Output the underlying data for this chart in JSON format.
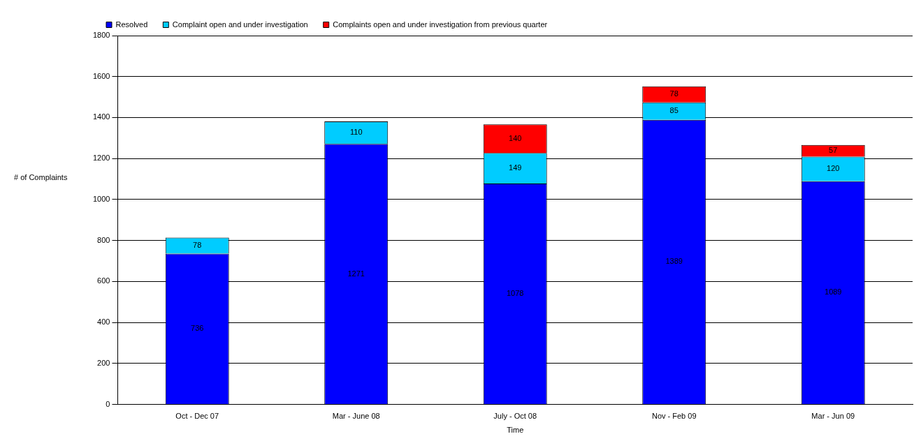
{
  "chart_data": {
    "type": "bar",
    "stacked": true,
    "xlabel": "Time",
    "ylabel": "# of Complaints",
    "categories": [
      "Oct - Dec 07",
      "Mar - June 08",
      "July - Oct 08",
      "Nov - Feb 09",
      "Mar - Jun 09"
    ],
    "series": [
      {
        "name": "Resolved",
        "color": "#0000ff",
        "values": [
          736,
          1271,
          1078,
          1389,
          1089
        ]
      },
      {
        "name": "Complaint open and under investigation",
        "color": "#00ccff",
        "values": [
          78,
          110,
          149,
          85,
          120
        ]
      },
      {
        "name": "Complaints open and under investigation from previous quarter",
        "color": "#ff0000",
        "values": [
          null,
          null,
          140,
          78,
          57
        ]
      }
    ],
    "ylim": [
      0,
      1800
    ],
    "yticks": [
      0,
      200,
      400,
      600,
      800,
      1000,
      1200,
      1400,
      1600,
      1800
    ],
    "grid": "y",
    "legend": "top",
    "data_labels": true
  }
}
